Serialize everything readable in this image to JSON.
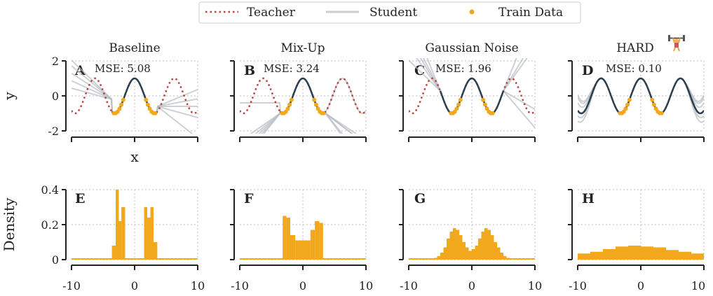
{
  "legend": {
    "items": [
      {
        "label": "Teacher",
        "style": "dotted",
        "color": "#b5453e"
      },
      {
        "label": "Student",
        "style": "solid",
        "color": "#c8ccd0"
      },
      {
        "label": "Train Data",
        "style": "dot",
        "color": "#f2a81d"
      }
    ]
  },
  "colors": {
    "teacher": "#b5453e",
    "student_dark": "#2b4150",
    "student_light": "#b8bec4",
    "data": "#f2a81d",
    "axis": "#222222",
    "grid": "#bbbbbb"
  },
  "icons": {
    "hard": "weightlifter-icon"
  },
  "chart_data": [
    {
      "id": "A",
      "type": "line",
      "title": "Baseline",
      "annotation": "MSE: 5.08",
      "xlabel": "x",
      "ylabel": "y",
      "xlim": [
        -10,
        10
      ],
      "ylim": [
        -2,
        2
      ],
      "yticks": [
        -2,
        0,
        2
      ],
      "behaviour": "flat-extrapolation",
      "grid": true
    },
    {
      "id": "B",
      "type": "line",
      "title": "Mix-Up",
      "annotation": "MSE: 3.24",
      "xlabel": "",
      "ylabel": "",
      "xlim": [
        -10,
        10
      ],
      "ylim": [
        -2,
        2
      ],
      "behaviour": "linear-extrapolation",
      "grid": true
    },
    {
      "id": "C",
      "type": "line",
      "title": "Gaussian Noise",
      "annotation": "MSE: 1.96",
      "xlabel": "",
      "ylabel": "",
      "xlim": [
        -10,
        10
      ],
      "ylim": [
        -2,
        2
      ],
      "behaviour": "partial-fit",
      "grid": true
    },
    {
      "id": "D",
      "type": "line",
      "title": "HARD",
      "annotation": "MSE: 0.10",
      "xlabel": "",
      "ylabel": "",
      "xlim": [
        -10,
        10
      ],
      "ylim": [
        -2,
        2
      ],
      "behaviour": "full-fit",
      "grid": true
    },
    {
      "id": "E",
      "type": "bar",
      "title": "",
      "ylabel": "Density",
      "xlim": [
        -10,
        10
      ],
      "ylim": [
        0,
        0.4
      ],
      "xticks": [
        -10,
        0,
        10
      ],
      "yticks": [
        0.0,
        0.2,
        0.4
      ],
      "grid": true,
      "bins": [
        {
          "x0": -3.6,
          "x1": -3.0,
          "y": 0.08
        },
        {
          "x0": -3.0,
          "x1": -2.5,
          "y": 0.4
        },
        {
          "x0": -2.5,
          "x1": -2.1,
          "y": 0.22
        },
        {
          "x0": -2.1,
          "x1": -1.5,
          "y": 0.3
        },
        {
          "x0": 1.5,
          "x1": 2.0,
          "y": 0.3
        },
        {
          "x0": 2.0,
          "x1": 2.5,
          "y": 0.24
        },
        {
          "x0": 2.5,
          "x1": 3.0,
          "y": 0.3
        },
        {
          "x0": 3.0,
          "x1": 3.6,
          "y": 0.1
        }
      ]
    },
    {
      "id": "F",
      "type": "bar",
      "title": "",
      "xlim": [
        -10,
        10
      ],
      "ylim": [
        0,
        0.4
      ],
      "xticks": [
        -10,
        0,
        10
      ],
      "grid": true,
      "bins": [
        {
          "x0": -3.2,
          "x1": -2.6,
          "y": 0.25
        },
        {
          "x0": -2.6,
          "x1": -2.0,
          "y": 0.24
        },
        {
          "x0": -2.0,
          "x1": -1.2,
          "y": 0.14
        },
        {
          "x0": -1.2,
          "x1": 1.2,
          "y": 0.11
        },
        {
          "x0": 1.2,
          "x1": 1.9,
          "y": 0.17
        },
        {
          "x0": 1.9,
          "x1": 2.6,
          "y": 0.22
        },
        {
          "x0": 2.6,
          "x1": 3.2,
          "y": 0.21
        }
      ]
    },
    {
      "id": "G",
      "type": "bar",
      "title": "",
      "xlim": [
        -10,
        10
      ],
      "ylim": [
        0,
        0.4
      ],
      "xticks": [
        -10,
        0,
        10
      ],
      "grid": true,
      "bins": [
        {
          "x0": -6.0,
          "x1": -5.5,
          "y": 0.01
        },
        {
          "x0": -5.5,
          "x1": -5.0,
          "y": 0.02
        },
        {
          "x0": -5.0,
          "x1": -4.5,
          "y": 0.04
        },
        {
          "x0": -4.5,
          "x1": -4.0,
          "y": 0.07
        },
        {
          "x0": -4.0,
          "x1": -3.5,
          "y": 0.12
        },
        {
          "x0": -3.5,
          "x1": -3.0,
          "y": 0.16
        },
        {
          "x0": -3.0,
          "x1": -2.5,
          "y": 0.18
        },
        {
          "x0": -2.5,
          "x1": -2.0,
          "y": 0.17
        },
        {
          "x0": -2.0,
          "x1": -1.5,
          "y": 0.14
        },
        {
          "x0": -1.5,
          "x1": -1.0,
          "y": 0.1
        },
        {
          "x0": -1.0,
          "x1": -0.5,
          "y": 0.07
        },
        {
          "x0": -0.5,
          "x1": 0.0,
          "y": 0.05
        },
        {
          "x0": 0.0,
          "x1": 0.5,
          "y": 0.06
        },
        {
          "x0": 0.5,
          "x1": 1.0,
          "y": 0.08
        },
        {
          "x0": 1.0,
          "x1": 1.5,
          "y": 0.12
        },
        {
          "x0": 1.5,
          "x1": 2.0,
          "y": 0.16
        },
        {
          "x0": 2.0,
          "x1": 2.5,
          "y": 0.18
        },
        {
          "x0": 2.5,
          "x1": 3.0,
          "y": 0.17
        },
        {
          "x0": 3.0,
          "x1": 3.5,
          "y": 0.14
        },
        {
          "x0": 3.5,
          "x1": 4.0,
          "y": 0.1
        },
        {
          "x0": 4.0,
          "x1": 4.5,
          "y": 0.07
        },
        {
          "x0": 4.5,
          "x1": 5.0,
          "y": 0.04
        },
        {
          "x0": 5.0,
          "x1": 5.5,
          "y": 0.02
        },
        {
          "x0": 5.5,
          "x1": 6.0,
          "y": 0.01
        }
      ]
    },
    {
      "id": "H",
      "type": "bar",
      "title": "",
      "xlim": [
        -10,
        10
      ],
      "ylim": [
        0,
        0.4
      ],
      "xticks": [
        -10,
        0,
        10
      ],
      "grid": true,
      "bins": [
        {
          "x0": -10,
          "x1": -8,
          "y": 0.035
        },
        {
          "x0": -8,
          "x1": -6,
          "y": 0.045
        },
        {
          "x0": -6,
          "x1": -4,
          "y": 0.06
        },
        {
          "x0": -4,
          "x1": -2,
          "y": 0.075
        },
        {
          "x0": -2,
          "x1": 0,
          "y": 0.08
        },
        {
          "x0": 0,
          "x1": 2,
          "y": 0.075
        },
        {
          "x0": 2,
          "x1": 4,
          "y": 0.07
        },
        {
          "x0": 4,
          "x1": 6,
          "y": 0.055
        },
        {
          "x0": 6,
          "x1": 8,
          "y": 0.045
        },
        {
          "x0": 8,
          "x1": 10,
          "y": 0.035
        }
      ]
    }
  ]
}
